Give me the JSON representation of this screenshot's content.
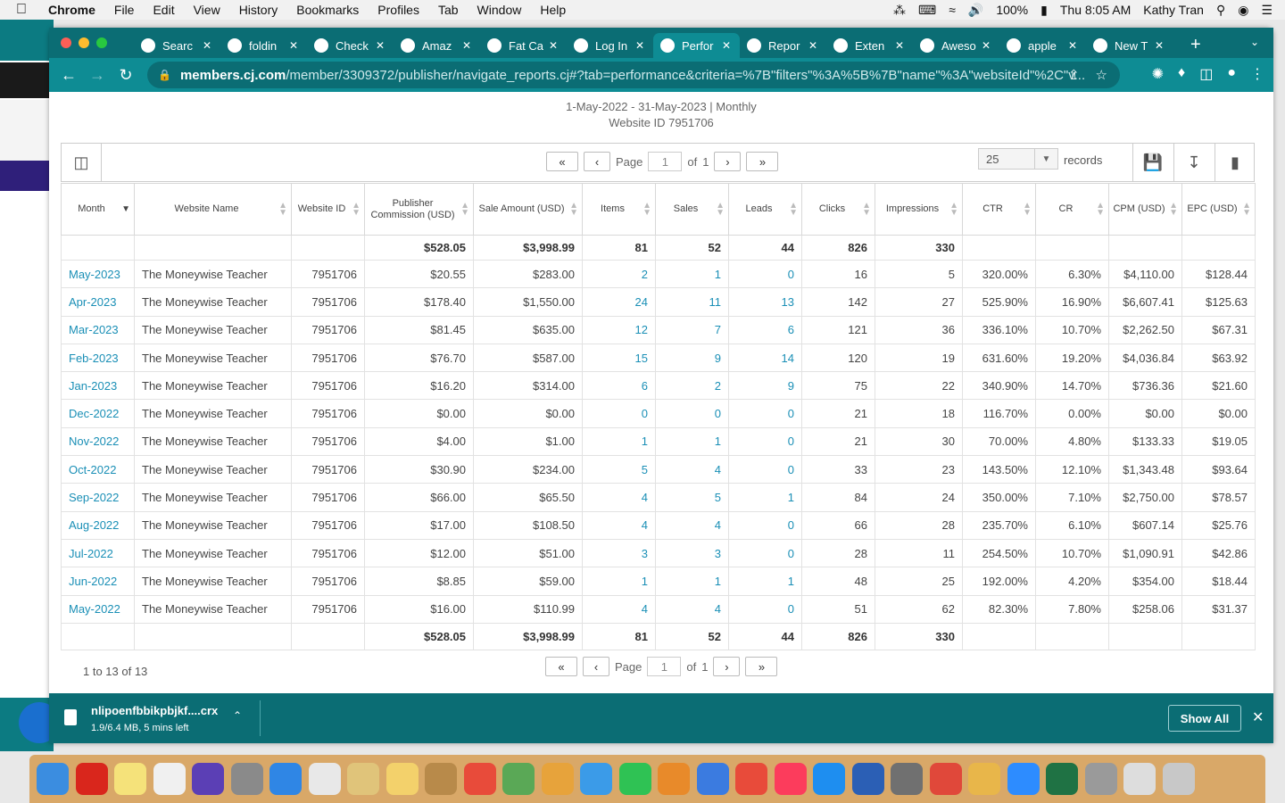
{
  "menubar": {
    "app": "Chrome",
    "items": [
      "File",
      "Edit",
      "View",
      "History",
      "Bookmarks",
      "Profiles",
      "Tab",
      "Window",
      "Help"
    ],
    "battery": "100%",
    "clock": "Thu 8:05 AM",
    "user": "Kathy Tran"
  },
  "tabs": [
    {
      "label": "Searc",
      "icon": "search-favicon"
    },
    {
      "label": "foldin",
      "icon": "google-favicon"
    },
    {
      "label": "Check",
      "icon": "globe-favicon"
    },
    {
      "label": "Amaz",
      "icon": "globe-favicon"
    },
    {
      "label": "Fat Ca",
      "icon": "globe-favicon"
    },
    {
      "label": "Log In",
      "icon": "globe-favicon"
    },
    {
      "label": "Perfor",
      "icon": "cj-favicon",
      "active": true
    },
    {
      "label": "Repor",
      "icon": "report-favicon"
    },
    {
      "label": "Exten",
      "icon": "puzzle-favicon"
    },
    {
      "label": "Aweso",
      "icon": "awesome-favicon"
    },
    {
      "label": "apple",
      "icon": "google-favicon"
    },
    {
      "label": "New T",
      "icon": "chrome-favicon"
    }
  ],
  "address": {
    "host": "members.cj.com",
    "path": "/member/3309372/publisher/navigate_reports.cj#?tab=performance&criteria=%7B\"filters\"%3A%5B%7B\"name\"%3A\"websiteId\"%2C\"v..."
  },
  "report": {
    "range": "1-May-2022 - 31-May-2023 | Monthly",
    "website": "Website ID 7951706"
  },
  "pager": {
    "page_label": "Page",
    "page_value": "1",
    "of_label": "of",
    "total_pages": "1",
    "records_value": "25",
    "records_label": "records",
    "count": "1 to 13 of 13"
  },
  "columns": [
    {
      "label": "Month",
      "sorted": true
    },
    {
      "label": "Website Name"
    },
    {
      "label": "Website ID"
    },
    {
      "label": "Publisher Commission (USD)"
    },
    {
      "label": "Sale Amount (USD)"
    },
    {
      "label": "Items"
    },
    {
      "label": "Sales"
    },
    {
      "label": "Leads"
    },
    {
      "label": "Clicks"
    },
    {
      "label": "Impressions"
    },
    {
      "label": "CTR"
    },
    {
      "label": "CR"
    },
    {
      "label": "CPM (USD)"
    },
    {
      "label": "EPC (USD)"
    }
  ],
  "totals": [
    "",
    "",
    "",
    "$528.05",
    "$3,998.99",
    "81",
    "52",
    "44",
    "826",
    "330",
    "",
    "",
    "",
    ""
  ],
  "rows": [
    [
      "May-2023",
      "The Moneywise Teacher",
      "7951706",
      "$20.55",
      "$283.00",
      "2",
      "1",
      "0",
      "16",
      "5",
      "320.00%",
      "6.30%",
      "$4,110.00",
      "$128.44"
    ],
    [
      "Apr-2023",
      "The Moneywise Teacher",
      "7951706",
      "$178.40",
      "$1,550.00",
      "24",
      "11",
      "13",
      "142",
      "27",
      "525.90%",
      "16.90%",
      "$6,607.41",
      "$125.63"
    ],
    [
      "Mar-2023",
      "The Moneywise Teacher",
      "7951706",
      "$81.45",
      "$635.00",
      "12",
      "7",
      "6",
      "121",
      "36",
      "336.10%",
      "10.70%",
      "$2,262.50",
      "$67.31"
    ],
    [
      "Feb-2023",
      "The Moneywise Teacher",
      "7951706",
      "$76.70",
      "$587.00",
      "15",
      "9",
      "14",
      "120",
      "19",
      "631.60%",
      "19.20%",
      "$4,036.84",
      "$63.92"
    ],
    [
      "Jan-2023",
      "The Moneywise Teacher",
      "7951706",
      "$16.20",
      "$314.00",
      "6",
      "2",
      "9",
      "75",
      "22",
      "340.90%",
      "14.70%",
      "$736.36",
      "$21.60"
    ],
    [
      "Dec-2022",
      "The Moneywise Teacher",
      "7951706",
      "$0.00",
      "$0.00",
      "0",
      "0",
      "0",
      "21",
      "18",
      "116.70%",
      "0.00%",
      "$0.00",
      "$0.00"
    ],
    [
      "Nov-2022",
      "The Moneywise Teacher",
      "7951706",
      "$4.00",
      "$1.00",
      "1",
      "1",
      "0",
      "21",
      "30",
      "70.00%",
      "4.80%",
      "$133.33",
      "$19.05"
    ],
    [
      "Oct-2022",
      "The Moneywise Teacher",
      "7951706",
      "$30.90",
      "$234.00",
      "5",
      "4",
      "0",
      "33",
      "23",
      "143.50%",
      "12.10%",
      "$1,343.48",
      "$93.64"
    ],
    [
      "Sep-2022",
      "The Moneywise Teacher",
      "7951706",
      "$66.00",
      "$65.50",
      "4",
      "5",
      "1",
      "84",
      "24",
      "350.00%",
      "7.10%",
      "$2,750.00",
      "$78.57"
    ],
    [
      "Aug-2022",
      "The Moneywise Teacher",
      "7951706",
      "$17.00",
      "$108.50",
      "4",
      "4",
      "0",
      "66",
      "28",
      "235.70%",
      "6.10%",
      "$607.14",
      "$25.76"
    ],
    [
      "Jul-2022",
      "The Moneywise Teacher",
      "7951706",
      "$12.00",
      "$51.00",
      "3",
      "3",
      "0",
      "28",
      "11",
      "254.50%",
      "10.70%",
      "$1,090.91",
      "$42.86"
    ],
    [
      "Jun-2022",
      "The Moneywise Teacher",
      "7951706",
      "$8.85",
      "$59.00",
      "1",
      "1",
      "1",
      "48",
      "25",
      "192.00%",
      "4.20%",
      "$354.00",
      "$18.44"
    ],
    [
      "May-2022",
      "The Moneywise Teacher",
      "7951706",
      "$16.00",
      "$110.99",
      "4",
      "4",
      "0",
      "51",
      "62",
      "82.30%",
      "7.80%",
      "$258.06",
      "$31.37"
    ]
  ],
  "download": {
    "filename": "nlipoenfbbikpbjkf....crx",
    "status": "1.9/6.4 MB, 5 mins left",
    "show_all": "Show All"
  },
  "colors": {
    "chrome_frame": "#0b6d74",
    "chrome_toolbar": "#0e8c94",
    "link": "#1a8fb6"
  }
}
